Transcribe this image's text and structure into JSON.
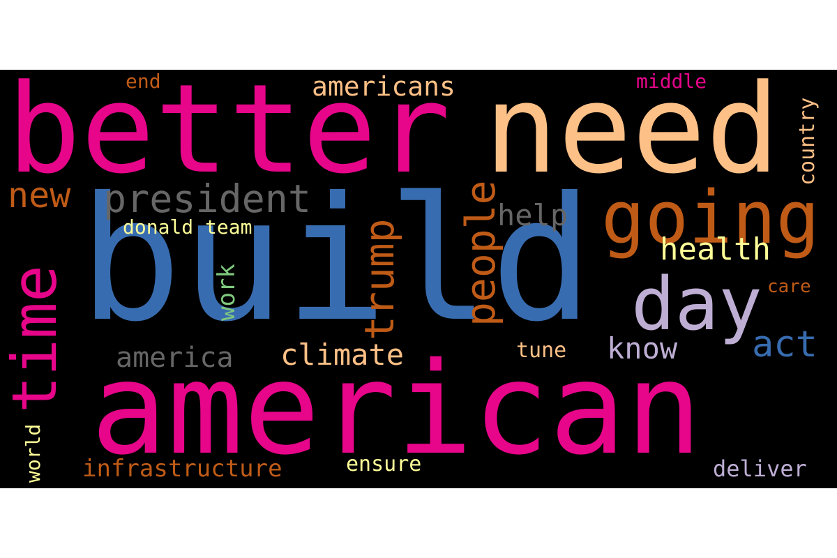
{
  "colors": {
    "background": "#000000",
    "page": "#ffffff",
    "pink": "#e7058a",
    "blue": "#386cb0",
    "peach": "#fdc086",
    "orange": "#bf5b17",
    "gray": "#666666",
    "yellow": "#ffff99",
    "green": "#7fc97f",
    "lavender": "#beaed4"
  },
  "words": {
    "build": "build",
    "american": "american",
    "better": "better",
    "need": "need",
    "going": "going",
    "day": "day",
    "time": "time",
    "president": "president",
    "trump": "trump",
    "people": "people",
    "act": "act",
    "health": "health",
    "climate": "climate",
    "new": "new",
    "americans": "americans",
    "america": "america",
    "know": "know",
    "help": "help",
    "work": "work",
    "donald_team": "donald team",
    "infrastructure": "infrastructure",
    "ensure": "ensure",
    "deliver": "deliver",
    "country": "country",
    "middle": "middle",
    "end": "end",
    "care": "care",
    "tune": "tune",
    "world": "world"
  }
}
